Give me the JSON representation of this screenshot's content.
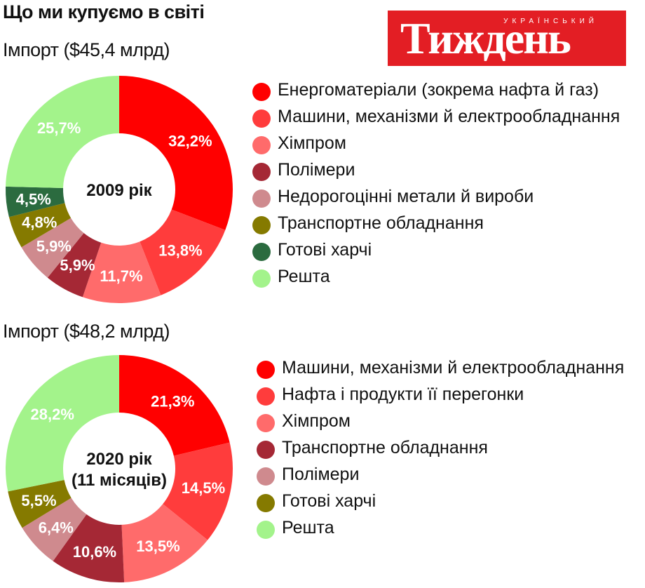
{
  "page_title": "Що ми купуємо в світі",
  "logo": {
    "small_text": "УКРАЇНСЬКИЙ",
    "big_text": "Тиждень"
  },
  "chart_data": [
    {
      "type": "pie",
      "title": "Імпорт ($45,4 млрд)",
      "center_label": [
        "2009 рік"
      ],
      "series": [
        {
          "name": "Енергоматеріали (зокрема нафта й газ)",
          "value": 32.2,
          "label": "32,2%",
          "color": "#ff0000"
        },
        {
          "name": "Машини, механізми й електрообладнання",
          "value": 13.8,
          "label": "13,8%",
          "color": "#ff3c3c"
        },
        {
          "name": "Хімпром",
          "value": 11.7,
          "label": "11,7%",
          "color": "#ff6b6b"
        },
        {
          "name": "Полімери",
          "value": 5.9,
          "label": "5,9%",
          "color": "#a52835"
        },
        {
          "name": "Недорогоцінні метали й вироби",
          "value": 5.9,
          "label": "5,9%",
          "color": "#cf8a8e"
        },
        {
          "name": "Транспортне обладнання",
          "value": 4.8,
          "label": "4,8%",
          "color": "#857a00"
        },
        {
          "name": "Готові харчі",
          "value": 4.5,
          "label": "4,5%",
          "color": "#2b6b3f"
        },
        {
          "name": "Решта",
          "value": 25.7,
          "label": "25,7%",
          "color": "#a3f38b"
        }
      ]
    },
    {
      "type": "pie",
      "title": "Імпорт ($48,2 млрд)",
      "center_label": [
        "2020 рік",
        "(11 місяців)"
      ],
      "series": [
        {
          "name": "Машини, механізми й електрообладнання",
          "value": 21.3,
          "label": "21,3%",
          "color": "#ff0000"
        },
        {
          "name": "Нафта і продукти її перегонки",
          "value": 14.5,
          "label": "14,5%",
          "color": "#ff3c3c"
        },
        {
          "name": "Хімпром",
          "value": 13.5,
          "label": "13,5%",
          "color": "#ff6b6b"
        },
        {
          "name": "Транспортне обладнання",
          "value": 10.6,
          "label": "10,6%",
          "color": "#a52835"
        },
        {
          "name": "Полімери",
          "value": 6.4,
          "label": "6,4%",
          "color": "#cf8a8e"
        },
        {
          "name": "Готові харчі",
          "value": 5.5,
          "label": "5,5%",
          "color": "#857a00"
        },
        {
          "name": "Решта",
          "value": 28.2,
          "label": "28,2%",
          "color": "#a3f38b"
        }
      ]
    }
  ]
}
